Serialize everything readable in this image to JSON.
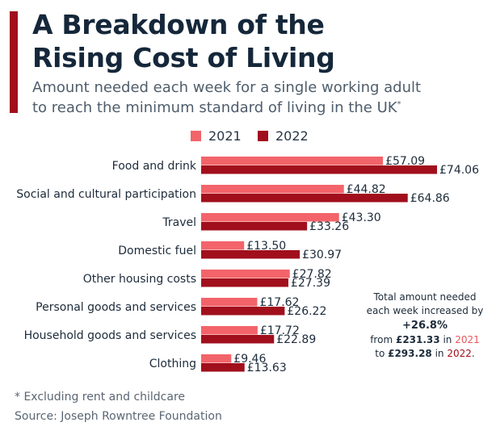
{
  "title_line1": "A Breakdown of the",
  "title_line2": "Rising Cost of Living",
  "subtitle_line1": "Amount needed each week for a single working adult",
  "subtitle_line2": "to reach the minimum standard of living in the UK",
  "subtitle_marker": "*",
  "colors": {
    "y2021": "#f2646a",
    "y2022": "#a10f1c",
    "accent": "#a10f1c"
  },
  "chart_data": {
    "type": "bar",
    "orientation": "horizontal",
    "unit_prefix": "£",
    "categories": [
      "Food and drink",
      "Social and cultural participation",
      "Travel",
      "Domestic fuel",
      "Other housing costs",
      "Personal goods and services",
      "Household goods and services",
      "Clothing"
    ],
    "series": [
      {
        "name": "2021",
        "values": [
          57.09,
          44.82,
          43.3,
          13.5,
          27.82,
          17.62,
          17.72,
          9.46
        ],
        "labels": [
          "£57.09",
          "£44.82",
          "£43.30",
          "£13.50",
          "£27.82",
          "£17.62",
          "£17.72",
          "£9.46"
        ]
      },
      {
        "name": "2022",
        "values": [
          74.06,
          64.86,
          33.26,
          30.97,
          27.39,
          26.22,
          22.89,
          13.63
        ],
        "labels": [
          "£74.06",
          "£64.86",
          "£33.26",
          "£30.97",
          "£27.39",
          "£26.22",
          "£22.89",
          "£13.63"
        ]
      }
    ],
    "xlim": [
      0,
      74.06
    ],
    "grid": false,
    "legend": "top-center"
  },
  "annotation": {
    "line1": "Total amount needed",
    "line2": "each week increased by",
    "pct": "+26.8%",
    "from_word": "from",
    "from_value": "£231.33",
    "in_word": "in",
    "year_a": "2021",
    "to_word": "to",
    "to_value": "£293.28",
    "year_b": "2022",
    "period": "."
  },
  "footnote": "* Excluding rent and childcare",
  "source": "Source: Joseph Rowntree Foundation"
}
